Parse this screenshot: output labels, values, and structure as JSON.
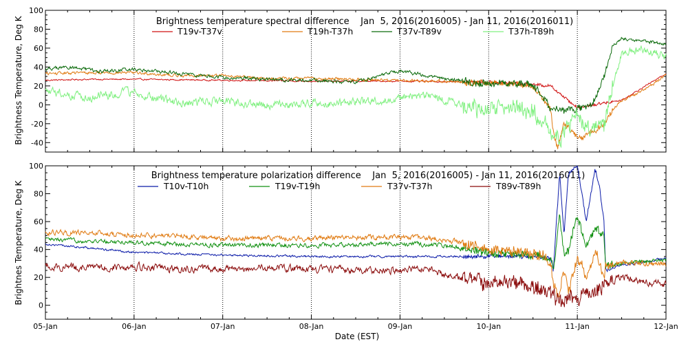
{
  "chart_data": [
    {
      "type": "line",
      "title": "Brightness temperature spectral difference    Jan  5, 2016(2016005) - Jan 11, 2016(2016011)",
      "xlabel": "",
      "ylabel": "Brightness Temperature, Deg K",
      "x_categories": [
        "05-Jan",
        "06-Jan",
        "07-Jan",
        "08-Jan",
        "09-Jan",
        "10-Jan",
        "11-Jan",
        "12-Jan"
      ],
      "xlim_days": [
        0,
        7
      ],
      "ylim": [
        -50,
        100
      ],
      "yticks": [
        -40,
        -20,
        0,
        20,
        40,
        60,
        80,
        100
      ],
      "grid": "vertical dotted at day boundaries",
      "legend_placement": "top",
      "series": [
        {
          "name": "T19v-T37v",
          "color": "#d01010",
          "noise": 0.6,
          "x": [
            0,
            0.5,
            1,
            2,
            3,
            4,
            5,
            5.3,
            5.7,
            6,
            6.5,
            7
          ],
          "y": [
            26,
            27,
            27,
            26,
            25,
            25,
            24,
            23,
            20,
            -3,
            5,
            33
          ]
        },
        {
          "name": "T19h-T37h",
          "color": "#e07a10",
          "noise": 1.2,
          "x": [
            0,
            0.5,
            1,
            1.5,
            2,
            2.5,
            3,
            3.5,
            4,
            4.5,
            5,
            5.3,
            5.5,
            5.7,
            5.73,
            5.78,
            5.85,
            5.95,
            6.05,
            6.15,
            6.3,
            6.4,
            6.5,
            6.7,
            7
          ],
          "y": [
            33,
            34,
            34,
            31,
            31,
            28,
            28,
            27,
            26,
            25,
            23,
            22,
            19,
            -3,
            -30,
            -45,
            -20,
            -30,
            -35,
            -28,
            -22,
            -5,
            5,
            12,
            32
          ]
        },
        {
          "name": "T37v-T89v",
          "color": "#0b6a0b",
          "noise": 1.5,
          "x": [
            0,
            0.3,
            0.6,
            1,
            1.5,
            2,
            2.5,
            3,
            3.5,
            4,
            4.3,
            4.5,
            5,
            5.3,
            5.5,
            5.7,
            5.8,
            6,
            6.2,
            6.3,
            6.4,
            6.5,
            6.7,
            7
          ],
          "y": [
            38,
            40,
            35,
            38,
            33,
            29,
            27,
            26,
            24,
            36,
            31,
            27,
            22,
            23,
            21,
            -3,
            -5,
            -5,
            3,
            30,
            62,
            70,
            68,
            64
          ]
        },
        {
          "name": "T37h-T89h",
          "color": "#80f080",
          "noise": 3.5,
          "x": [
            0,
            0.5,
            1,
            1.2,
            1.5,
            2,
            2.5,
            3,
            3.5,
            4,
            4.3,
            4.6,
            5,
            5.3,
            5.5,
            5.73,
            5.8,
            5.9,
            6,
            6.1,
            6.3,
            6.4,
            6.5,
            6.7,
            7
          ],
          "y": [
            14,
            8,
            14,
            8,
            2,
            4,
            0,
            2,
            2,
            7,
            11,
            2,
            -5,
            -1,
            -8,
            -30,
            -38,
            -20,
            -10,
            -25,
            -20,
            20,
            55,
            58,
            52
          ]
        }
      ]
    },
    {
      "type": "line",
      "title": "Brightness temperature polarization difference    Jan  5, 2016(2016005) - Jan 11, 2016(2016011)",
      "xlabel": "Date (EST)",
      "ylabel": "Brightnes Temperature, Deg K",
      "x_categories": [
        "05-Jan",
        "06-Jan",
        "07-Jan",
        "08-Jan",
        "09-Jan",
        "10-Jan",
        "11-Jan",
        "12-Jan"
      ],
      "xlim_days": [
        0,
        7
      ],
      "ylim": [
        -10,
        100
      ],
      "yticks": [
        0,
        20,
        40,
        60,
        80,
        100
      ],
      "grid": "vertical dotted at day boundaries",
      "legend_placement": "top",
      "series": [
        {
          "name": "T10v-T10h",
          "color": "#0a1aa8",
          "noise": 0.6,
          "x": [
            0,
            1,
            2,
            3,
            4,
            5,
            5.6,
            5.7,
            5.73,
            5.8,
            5.85,
            5.9,
            6,
            6.1,
            6.2,
            6.25,
            6.3,
            6.32,
            6.5,
            6.7,
            7
          ],
          "y": [
            44,
            38,
            36,
            35,
            35,
            35,
            35,
            34,
            25,
            95,
            50,
            95,
            100,
            60,
            98,
            85,
            60,
            25,
            29,
            30,
            34
          ]
        },
        {
          "name": "T19v-T19h",
          "color": "#109010",
          "noise": 1.2,
          "x": [
            0,
            1,
            2,
            3,
            4,
            4.5,
            5,
            5.6,
            5.7,
            5.73,
            5.8,
            5.85,
            5.9,
            6,
            6.1,
            6.2,
            6.3,
            6.32,
            6.5,
            7
          ],
          "y": [
            47,
            45,
            43,
            43,
            44,
            43,
            38,
            35,
            33,
            25,
            65,
            35,
            40,
            65,
            42,
            55,
            50,
            28,
            30,
            33
          ]
        },
        {
          "name": "T37v-T37h",
          "color": "#e07a10",
          "noise": 1.5,
          "x": [
            0,
            0.5,
            1,
            1.5,
            2,
            3,
            4,
            4.3,
            4.6,
            5,
            5.3,
            5.6,
            5.7,
            5.73,
            5.78,
            5.85,
            5.9,
            6,
            6.1,
            6.2,
            6.3,
            6.32,
            6.5,
            7
          ],
          "y": [
            52,
            52,
            50,
            50,
            48,
            48,
            49,
            48,
            46,
            40,
            40,
            35,
            30,
            15,
            5,
            25,
            8,
            35,
            20,
            40,
            20,
            28,
            30,
            30
          ]
        },
        {
          "name": "T89v-T89h",
          "color": "#8a0a0a",
          "noise": 2.0,
          "x": [
            0,
            0.5,
            1,
            1.5,
            2,
            2.5,
            3,
            3.5,
            4,
            4.3,
            4.5,
            4.8,
            5,
            5.2,
            5.5,
            5.7,
            5.75,
            5.85,
            5.9,
            6,
            6.1,
            6.15,
            6.2,
            6.3,
            6.32,
            6.5,
            6.8,
            7
          ],
          "y": [
            28,
            27,
            28,
            26,
            26,
            27,
            26,
            25,
            25,
            27,
            22,
            20,
            15,
            18,
            12,
            10,
            5,
            2,
            8,
            3,
            12,
            5,
            10,
            15,
            16,
            20,
            16,
            15
          ]
        }
      ]
    }
  ]
}
